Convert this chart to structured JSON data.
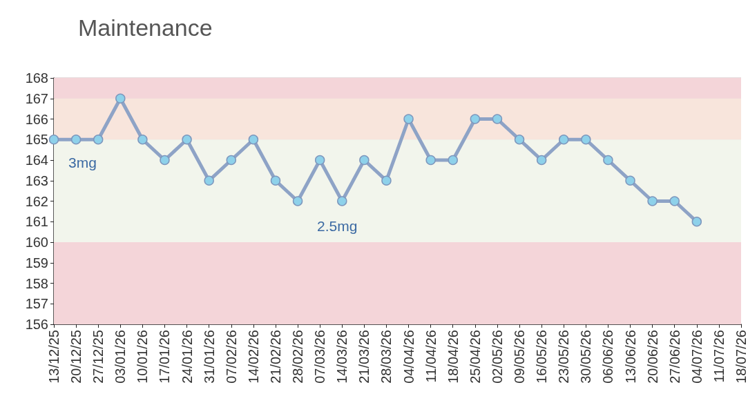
{
  "chart_data": {
    "type": "line",
    "title": "Maintenance",
    "categories": [
      "13/12/25",
      "20/12/25",
      "27/12/25",
      "03/01/26",
      "10/01/26",
      "17/01/26",
      "24/01/26",
      "31/01/26",
      "07/02/26",
      "14/02/26",
      "21/02/26",
      "28/02/26",
      "07/03/26",
      "14/03/26",
      "21/03/26",
      "28/03/26",
      "04/04/26",
      "11/04/26",
      "18/04/26",
      "25/04/26",
      "02/05/26",
      "09/05/26",
      "16/05/26",
      "23/05/26",
      "30/05/26",
      "06/06/26",
      "13/06/26",
      "20/06/26",
      "27/06/26",
      "04/07/26",
      "11/07/26",
      "18/07/26"
    ],
    "series": [
      {
        "color": "#8ea3c6",
        "values": [
          165,
          165,
          165,
          167,
          165,
          164,
          165,
          163,
          164,
          165,
          163,
          162,
          164,
          162,
          164,
          163,
          166,
          164,
          164,
          166,
          166,
          165,
          164,
          165,
          165,
          164,
          163,
          162,
          162,
          161,
          null,
          null
        ]
      }
    ],
    "ylim": [
      156,
      168
    ],
    "yticks": [
      156,
      157,
      158,
      159,
      160,
      161,
      162,
      163,
      164,
      165,
      166,
      167,
      168
    ],
    "grid": "y",
    "marker": "circle",
    "line_style": "solid",
    "bands": [
      {
        "axis": "y",
        "from": 167,
        "to": 168,
        "color": "#f4d5d9"
      },
      {
        "axis": "y",
        "from": 165,
        "to": 167,
        "color": "#f8e5dc"
      },
      {
        "axis": "y",
        "from": 160,
        "to": 165,
        "color": "#f2f5ec"
      },
      {
        "axis": "y",
        "from": 156,
        "to": 160,
        "color": "#f4d5d9"
      }
    ],
    "annotations": [
      "3mg",
      "2.5mg"
    ]
  }
}
